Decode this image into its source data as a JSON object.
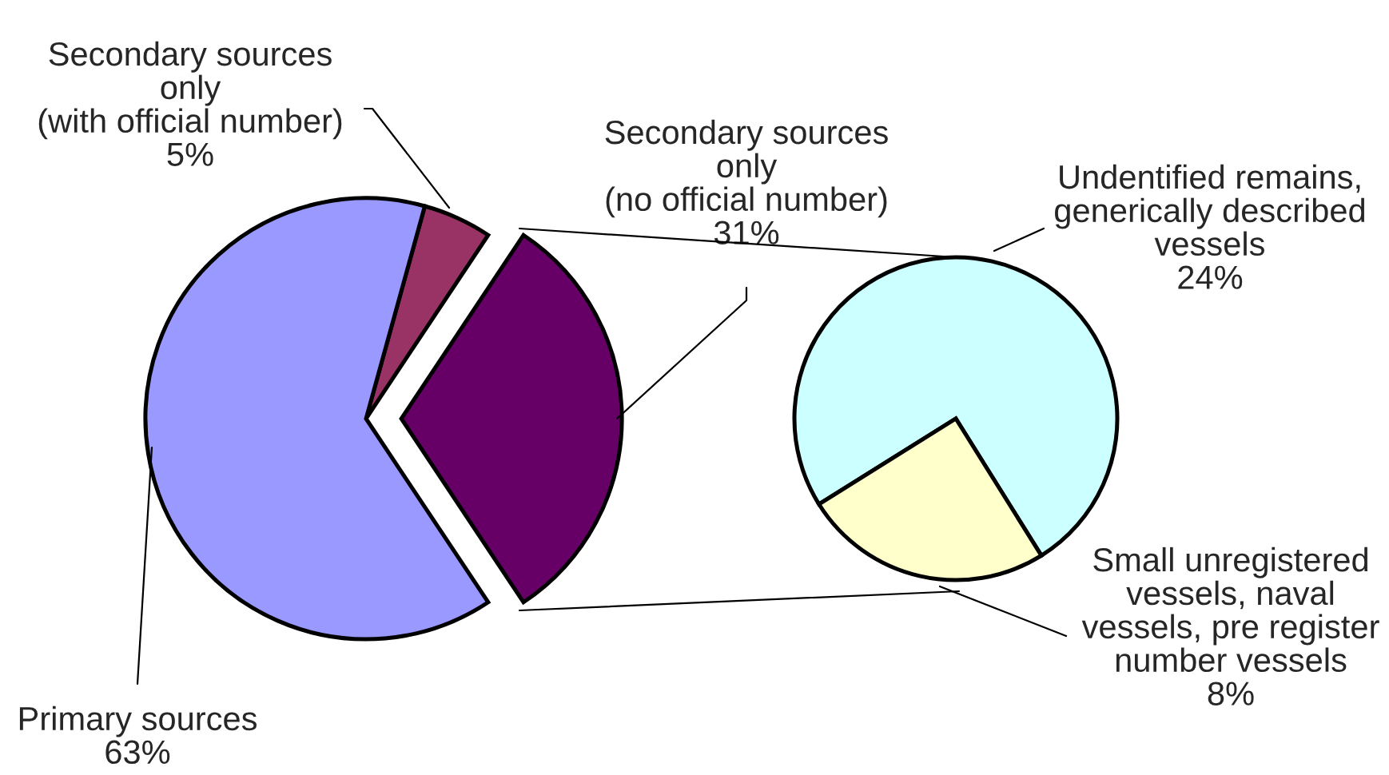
{
  "chart_data": [
    {
      "type": "pie",
      "categories": [
        "Secondary sources\nonly\n(no official number)",
        "Secondary sources\nonly\n(with official number)",
        "Primary sources"
      ],
      "values": [
        31,
        5,
        63
      ],
      "value_labels": [
        "31%",
        "5%",
        "63%"
      ],
      "colors": [
        "#660066",
        "#993366",
        "#9999ff"
      ]
    },
    {
      "type": "pie",
      "categories": [
        "Undentified remains,\ngenerically described\nvessels",
        "Small unregistered\nvessels, naval\nvessels, pre register\nnumber vessels"
      ],
      "values": [
        24,
        8
      ],
      "value_labels": [
        "24%",
        "8%"
      ],
      "colors": [
        "#ccffff",
        "#ffffcc"
      ]
    }
  ]
}
